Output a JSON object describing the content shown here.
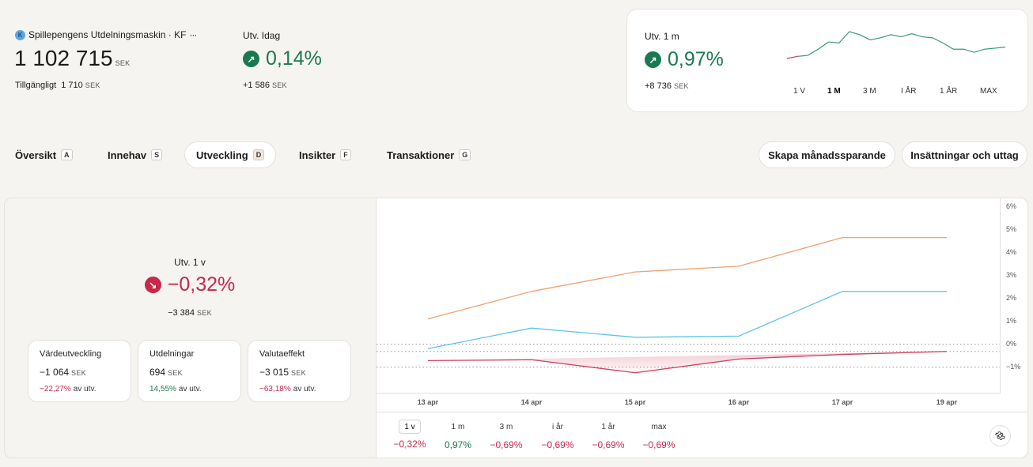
{
  "account": {
    "badge": "K",
    "name": "Spillepengens Utdelningsmaskin · KF",
    "more": "···",
    "value": "1 102 715",
    "currency": "SEK",
    "available_label": "Tillgängligt",
    "available_value": "1 710",
    "available_currency": "SEK"
  },
  "today": {
    "label": "Utv. Idag",
    "percent": "0,14%",
    "amount": "+1 586",
    "currency": "SEK",
    "color": "#1a7a4f"
  },
  "month_card": {
    "label": "Utv. 1 m",
    "percent": "0,97%",
    "amount": "+8 736",
    "currency": "SEK",
    "ranges": [
      "1 V",
      "1 M",
      "3 M",
      "I ÅR",
      "1 ÅR",
      "MAX"
    ],
    "selected_range": "1 M",
    "spark_values": [
      0.0,
      0.2,
      0.3,
      0.9,
      1.6,
      1.5,
      2.6,
      2.3,
      1.8,
      2.0,
      2.3,
      2.1,
      2.4,
      2.1,
      2.0,
      1.5,
      0.9,
      0.9,
      0.6,
      0.9,
      1.0,
      1.1
    ]
  },
  "tabs": [
    {
      "label": "Översikt",
      "key": "A"
    },
    {
      "label": "Innehav",
      "key": "S"
    },
    {
      "label": "Utveckling",
      "key": "D",
      "selected": true
    },
    {
      "label": "Insikter",
      "key": "F"
    },
    {
      "label": "Transaktioner",
      "key": "G"
    }
  ],
  "actions": {
    "monthly": "Skapa månadssparande",
    "deposits": "Insättningar och uttag"
  },
  "week": {
    "label": "Utv. 1 v",
    "percent": "−0,32%",
    "amount": "−3 384",
    "currency": "SEK",
    "color": "#c8284a"
  },
  "breakdown": [
    {
      "title": "Värdeutveckling",
      "value": "−1 064",
      "currency": "SEK",
      "pct": "−22,27%",
      "suffix": "av utv.",
      "tone": "red"
    },
    {
      "title": "Utdelningar",
      "value": "694",
      "currency": "SEK",
      "pct": "14,55%",
      "suffix": "av utv.",
      "tone": "green"
    },
    {
      "title": "Valutaeffekt",
      "value": "−3 015",
      "currency": "SEK",
      "pct": "−63,18%",
      "suffix": "av utv.",
      "tone": "red"
    }
  ],
  "chart_data": {
    "type": "line",
    "x": [
      "13 apr",
      "14 apr",
      "15 apr",
      "16 apr",
      "17 apr",
      "19 apr"
    ],
    "y_ticks": [
      "6%",
      "5%",
      "4%",
      "3%",
      "2%",
      "1%",
      "0%",
      "−1%"
    ],
    "ylim": [
      -1.3,
      6.0
    ],
    "grid": false,
    "series": [
      {
        "color": "#f0a070",
        "values": [
          1.1,
          2.3,
          3.15,
          3.4,
          4.65,
          4.65
        ]
      },
      {
        "color": "#5ec4ea",
        "values": [
          -0.2,
          0.7,
          0.3,
          0.35,
          2.3,
          2.3
        ]
      },
      {
        "color": "#d0405c",
        "values": [
          -0.72,
          -0.68,
          -1.25,
          -0.65,
          -0.45,
          -0.32
        ]
      }
    ]
  },
  "periods": [
    {
      "label": "1 v",
      "value": "−0,32%",
      "tone": "red",
      "selected": true
    },
    {
      "label": "1 m",
      "value": "0,97%",
      "tone": "green"
    },
    {
      "label": "3 m",
      "value": "−0,69%",
      "tone": "red"
    },
    {
      "label": "i år",
      "value": "−0,69%",
      "tone": "red"
    },
    {
      "label": "1 år",
      "value": "−0,69%",
      "tone": "red"
    },
    {
      "label": "max",
      "value": "−0,69%",
      "tone": "red"
    }
  ],
  "icons": {
    "up_arrow": "arrow-up-right-icon",
    "down_arrow": "arrow-down-right-icon",
    "settings": "gear-icon"
  }
}
